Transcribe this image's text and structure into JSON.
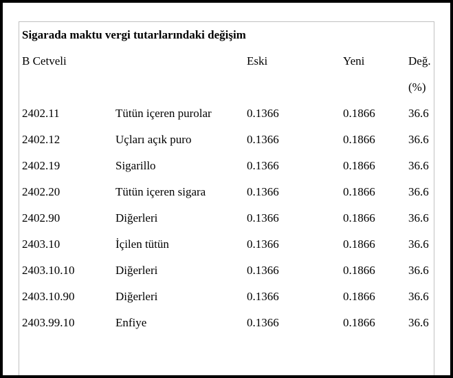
{
  "document": {
    "title": "Sigarada maktu vergi tutarlarındaki değişim",
    "table": {
      "header": {
        "schedule_col": "B Cetveli",
        "old_col": "Eski",
        "new_col": "Yeni",
        "change_col_line1": "Değ.",
        "change_col_line2": "(%)"
      },
      "rows": [
        {
          "code": "2402.11",
          "desc": "Tütün içeren purolar",
          "eski": "0.1366",
          "yeni": "0.1866",
          "deg": "36.6"
        },
        {
          "code": "2402.12",
          "desc": "Uçları açık puro",
          "eski": "0.1366",
          "yeni": "0.1866",
          "deg": "36.6"
        },
        {
          "code": "2402.19",
          "desc": "Sigarillo",
          "eski": "0.1366",
          "yeni": "0.1866",
          "deg": "36.6"
        },
        {
          "code": "2402.20",
          "desc": "Tütün içeren sigara",
          "eski": "0.1366",
          "yeni": "0.1866",
          "deg": "36.6"
        },
        {
          "code": "2402.90",
          "desc": "Diğerleri",
          "eski": "0.1366",
          "yeni": "0.1866",
          "deg": "36.6"
        },
        {
          "code": "2403.10",
          "desc": "İçilen tütün",
          "eski": "0.1366",
          "yeni": "0.1866",
          "deg": "36.6"
        },
        {
          "code": "2403.10.10",
          "desc": "Diğerleri",
          "eski": "0.1366",
          "yeni": "0.1866",
          "deg": "36.6"
        },
        {
          "code": "2403.10.90",
          "desc": "Diğerleri",
          "eski": "0.1366",
          "yeni": "0.1866",
          "deg": "36.6"
        },
        {
          "code": "2403.99.10",
          "desc": "Enfiye",
          "eski": "0.1366",
          "yeni": "0.1866",
          "deg": "36.6"
        }
      ]
    }
  },
  "colors": {
    "frame": "#000000",
    "table_border": "#c0c0c0",
    "text": "#000000",
    "background": "#ffffff"
  }
}
